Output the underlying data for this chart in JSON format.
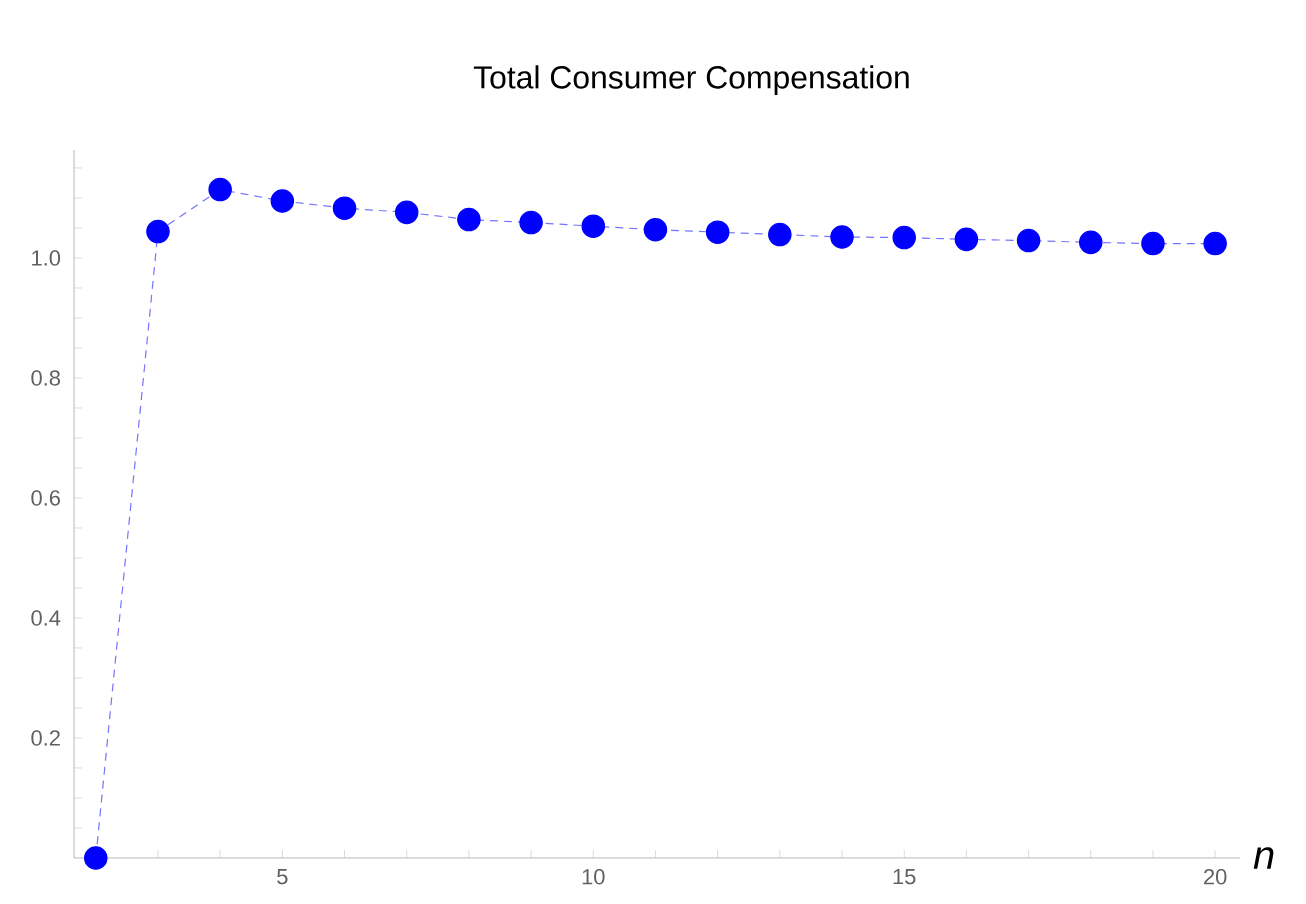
{
  "chart_data": {
    "type": "line",
    "title": "Total Consumer Compensation",
    "xlabel": "n",
    "x": [
      2,
      3,
      4,
      5,
      6,
      7,
      8,
      9,
      10,
      11,
      12,
      13,
      14,
      15,
      16,
      17,
      18,
      19,
      20
    ],
    "series": [
      {
        "color": "#0000ff",
        "values": [
          0,
          1.044,
          1.114,
          1.095,
          1.083,
          1.076,
          1.064,
          1.059,
          1.053,
          1.047,
          1.043,
          1.039,
          1.035,
          1.034,
          1.031,
          1.029,
          1.026,
          1.024,
          1.024
        ]
      }
    ],
    "xlim": [
      1.65,
      20.4
    ],
    "ylim": [
      0,
      1.18
    ],
    "xticks": [
      {
        "value": 2,
        "label": null
      },
      {
        "value": 3,
        "label": null
      },
      {
        "value": 4,
        "label": null
      },
      5,
      {
        "value": 6,
        "label": null
      },
      {
        "value": 7,
        "label": null
      },
      {
        "value": 8,
        "label": null
      },
      {
        "value": 9,
        "label": null
      },
      10,
      {
        "value": 11,
        "label": null
      },
      {
        "value": 12,
        "label": null
      },
      {
        "value": 13,
        "label": null
      },
      {
        "value": 14,
        "label": null
      },
      15,
      {
        "value": 16,
        "label": null
      },
      {
        "value": 17,
        "label": null
      },
      {
        "value": 18,
        "label": null
      },
      {
        "value": 19,
        "label": null
      },
      20
    ],
    "yticks": [
      {
        "value": 0.05,
        "label": null
      },
      {
        "value": 0.1,
        "label": null
      },
      {
        "value": 0.15,
        "label": null
      },
      0.2,
      {
        "value": 0.25,
        "label": null
      },
      {
        "value": 0.3,
        "label": null
      },
      {
        "value": 0.35,
        "label": null
      },
      {
        "value": 0.4,
        "label": "0.4"
      },
      {
        "value": 0.45,
        "label": null
      },
      {
        "value": 0.5,
        "label": null
      },
      {
        "value": 0.55,
        "label": null
      },
      {
        "value": 0.6,
        "label": "0.6"
      },
      {
        "value": 0.65,
        "label": null
      },
      {
        "value": 0.7,
        "label": null
      },
      {
        "value": 0.75,
        "label": null
      },
      {
        "value": 0.8,
        "label": "0.8"
      },
      {
        "value": 0.85,
        "label": null
      },
      {
        "value": 0.9,
        "label": null
      },
      {
        "value": 0.95,
        "label": null
      },
      {
        "value": 1.0,
        "label": "1.0"
      },
      {
        "value": 1.05,
        "label": null
      },
      {
        "value": 1.1,
        "label": null
      },
      {
        "value": 1.15,
        "label": null
      }
    ],
    "grid": false,
    "marker": "circle",
    "line_style": "dashed"
  }
}
